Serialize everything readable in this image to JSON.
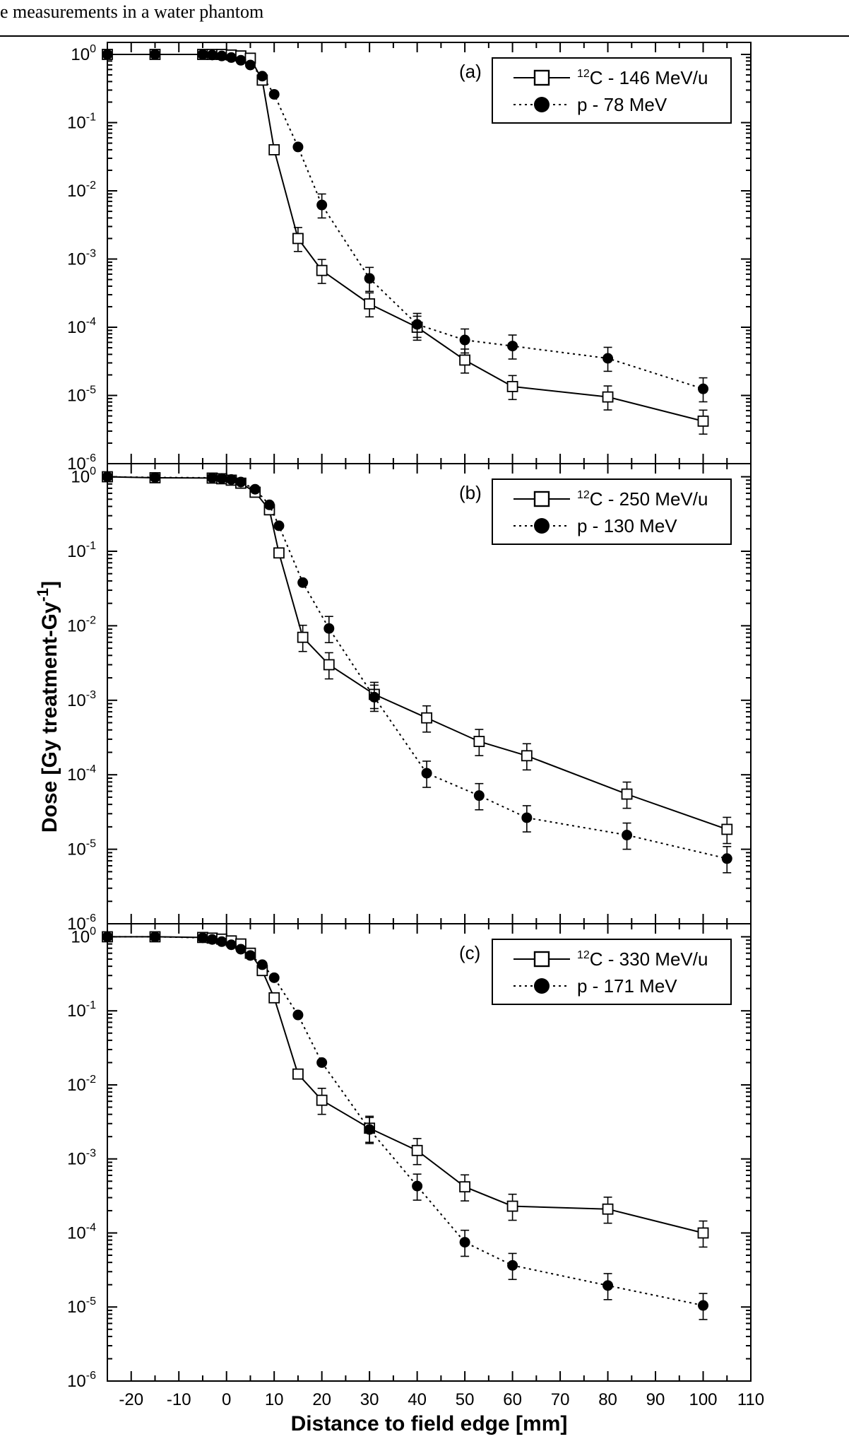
{
  "header": {
    "text": "e measurements in a water phantom"
  },
  "chart_data": {
    "type": "scatter",
    "xlabel": "Distance to field edge [mm]",
    "ylabel": "Dose [Gy treatment-Gy-1]",
    "ylabel_parts": {
      "main": "Dose [Gy treatment-Gy",
      "sup": "-1",
      "end": "]"
    },
    "xlim": [
      -25,
      110
    ],
    "x_ticks": [
      -20,
      -10,
      0,
      10,
      20,
      30,
      40,
      50,
      60,
      70,
      80,
      90,
      100,
      110
    ],
    "y_scale": "log",
    "ylim": [
      1e-06,
      1.5
    ],
    "y_tick_labels": [
      {
        "value": 1,
        "base": "10",
        "exp": "0"
      },
      {
        "value": 0.1,
        "base": "10",
        "exp": "-1"
      },
      {
        "value": 0.01,
        "base": "10",
        "exp": "-2"
      },
      {
        "value": 0.001,
        "base": "10",
        "exp": "-3"
      },
      {
        "value": 0.0001,
        "base": "10",
        "exp": "-4"
      },
      {
        "value": 1e-05,
        "base": "10",
        "exp": "-5"
      },
      {
        "value": 1e-06,
        "base": "10",
        "exp": "-6"
      }
    ],
    "panels": [
      {
        "label": "(a)",
        "legend_placement": "top-right",
        "series": [
          {
            "name": "12C - 146 MeV/u",
            "name_sup": "12",
            "name_rest": "C - 146 MeV/u",
            "marker": "open-square",
            "line": "solid",
            "x": [
              -25,
              -15,
              -5,
              -3,
              -1,
              1,
              3,
              5,
              7.5,
              10,
              15,
              20,
              30,
              40,
              50,
              60,
              80,
              100
            ],
            "y": [
              1.0,
              1.0,
              1.0,
              1.0,
              1.0,
              0.98,
              0.95,
              0.88,
              0.42,
              0.04,
              0.002,
              0.00068,
              0.00022,
              0.0001,
              3.3e-05,
              1.35e-05,
              9.5e-06,
              4.2e-06
            ]
          },
          {
            "name": "p - 78 MeV",
            "name_sup": "",
            "name_rest": "p - 78 MeV",
            "marker": "filled-circle",
            "line": "dotted",
            "x": [
              -25,
              -15,
              -5,
              -3,
              -1,
              1,
              3,
              5,
              7.5,
              10,
              15,
              20,
              30,
              40,
              50,
              60,
              80,
              100
            ],
            "y": [
              1.0,
              1.0,
              1.0,
              0.98,
              0.95,
              0.9,
              0.82,
              0.7,
              0.48,
              0.26,
              0.044,
              0.0062,
              0.00052,
              0.00011,
              6.5e-05,
              5.3e-05,
              3.5e-05,
              1.25e-05
            ]
          }
        ]
      },
      {
        "label": "(b)",
        "legend_placement": "top-right",
        "series": [
          {
            "name": "12C - 250 MeV/u",
            "name_sup": "12",
            "name_rest": "C - 250 MeV/u",
            "marker": "open-square",
            "line": "solid",
            "x": [
              -25,
              -15,
              -3,
              -1,
              1,
              3,
              6,
              9,
              11,
              16,
              21.5,
              31,
              42,
              53,
              63,
              84,
              105
            ],
            "y": [
              1.0,
              0.97,
              0.96,
              0.94,
              0.9,
              0.82,
              0.62,
              0.36,
              0.095,
              0.007,
              0.003,
              0.0012,
              0.00058,
              0.00028,
              0.00018,
              5.5e-05,
              1.85e-05
            ]
          },
          {
            "name": "p - 130 MeV",
            "name_sup": "",
            "name_rest": "p - 130 MeV",
            "marker": "filled-circle",
            "line": "dotted",
            "x": [
              -25,
              -15,
              -3,
              -1,
              1,
              3,
              6,
              9,
              11,
              16,
              21.5,
              31,
              42,
              53,
              63,
              84,
              105
            ],
            "y": [
              1.0,
              0.98,
              0.97,
              0.95,
              0.92,
              0.85,
              0.68,
              0.42,
              0.22,
              0.038,
              0.0092,
              0.0011,
              0.000105,
              5.25e-05,
              2.65e-05,
              1.55e-05,
              7.5e-06
            ]
          }
        ]
      },
      {
        "label": "(c)",
        "legend_placement": "top-right",
        "series": [
          {
            "name": "12C - 330 MeV/u",
            "name_sup": "12",
            "name_rest": "C - 330 MeV/u",
            "marker": "open-square",
            "line": "solid",
            "x": [
              -25,
              -15,
              -5,
              -3,
              -1,
              1,
              3,
              5,
              7.5,
              10,
              15,
              20,
              30,
              40,
              50,
              60,
              80,
              100
            ],
            "y": [
              1.0,
              1.0,
              0.98,
              0.96,
              0.93,
              0.88,
              0.8,
              0.6,
              0.35,
              0.15,
              0.014,
              0.0062,
              0.0026,
              0.0013,
              0.00042,
              0.00023,
              0.00021,
              0.0001
            ]
          },
          {
            "name": "p - 171 MeV",
            "name_sup": "",
            "name_rest": "p - 171 MeV",
            "marker": "filled-circle",
            "line": "dotted",
            "x": [
              -25,
              -15,
              -5,
              -3,
              -1,
              1,
              3,
              5,
              7.5,
              10,
              15,
              20,
              30,
              40,
              50,
              60,
              80,
              100
            ],
            "y": [
              1.0,
              1.0,
              0.97,
              0.92,
              0.86,
              0.78,
              0.68,
              0.56,
              0.42,
              0.28,
              0.088,
              0.02,
              0.0025,
              0.00043,
              7.5e-05,
              3.65e-05,
              1.95e-05,
              1.05e-05
            ]
          }
        ]
      }
    ]
  }
}
